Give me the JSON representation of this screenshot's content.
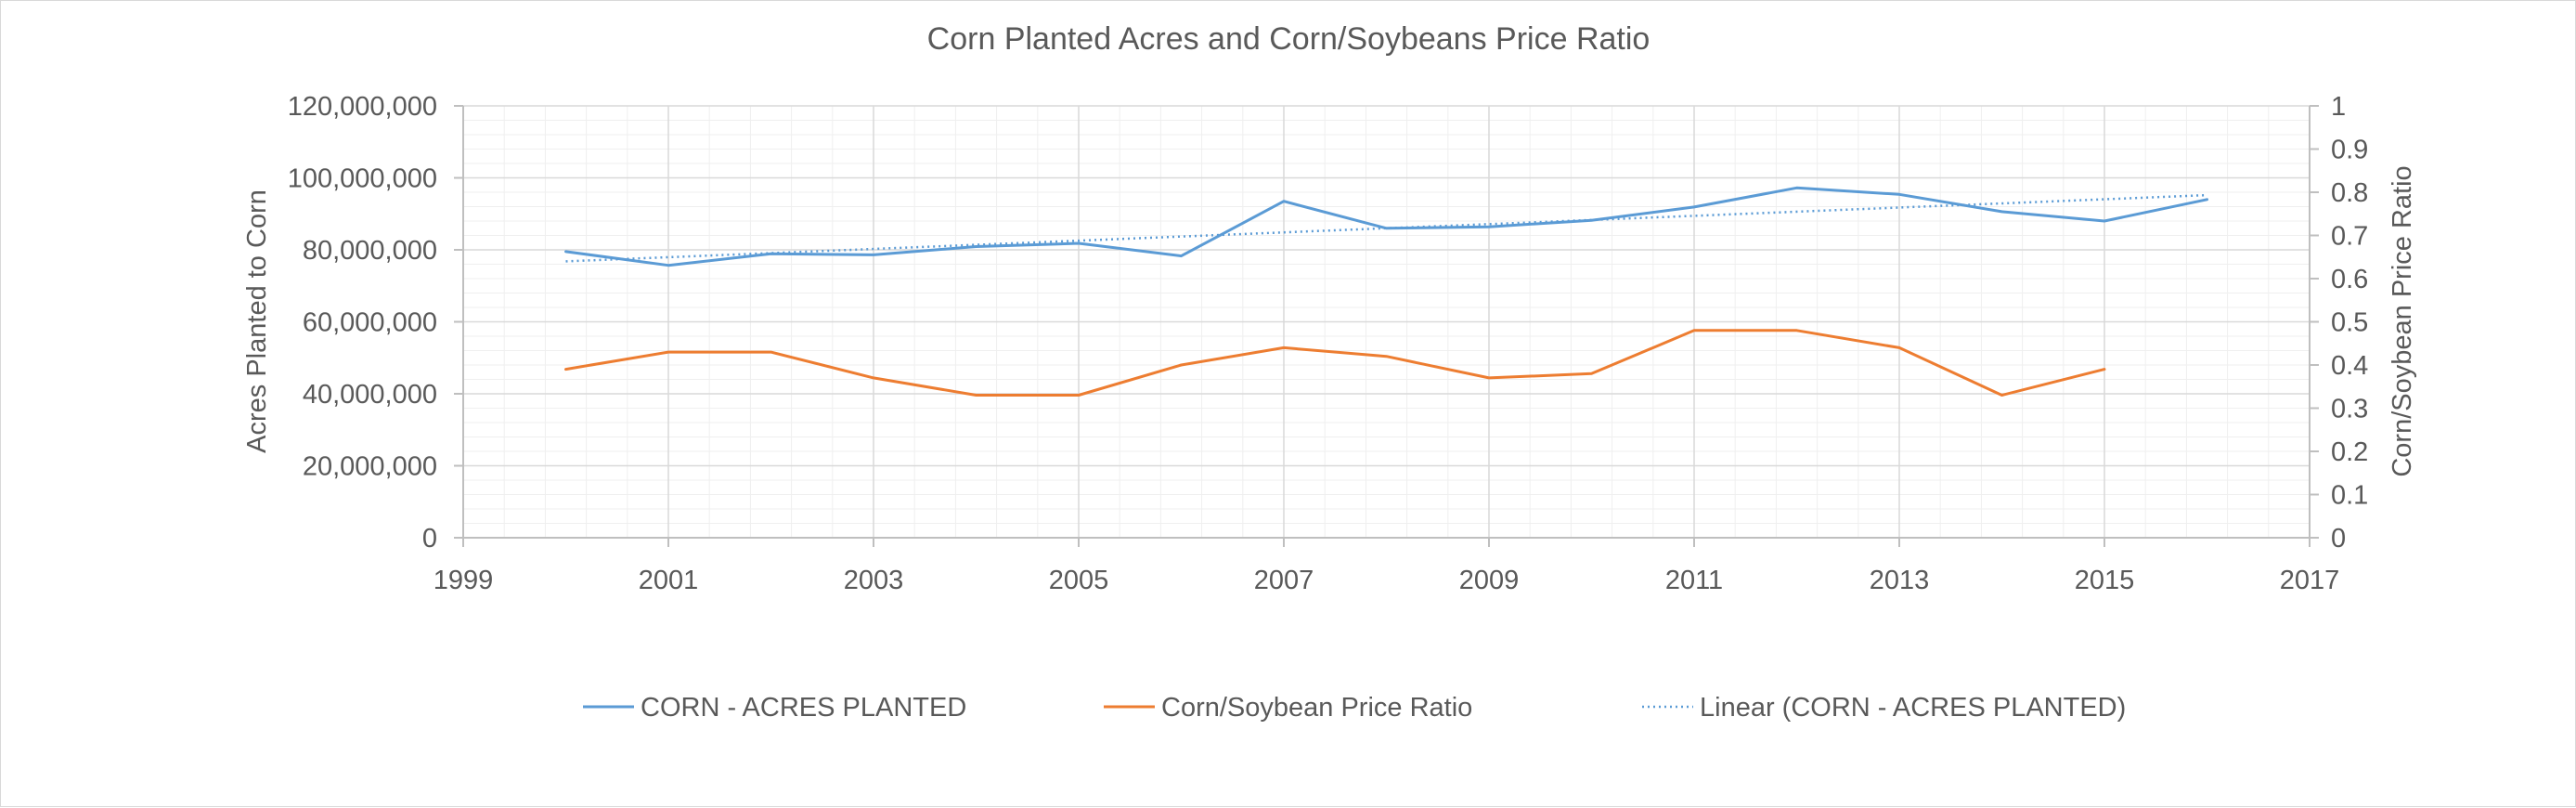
{
  "chart_data": {
    "type": "line",
    "title": "Corn Planted Acres and Corn/Soybeans Price Ratio",
    "xlabel": "",
    "ylabel": "Acres Planted to Corn",
    "y2label": "Corn/Soybean Price Ratio",
    "xlim": [
      1999,
      2017
    ],
    "x_ticks": [
      "1999",
      "2001",
      "2003",
      "2005",
      "2007",
      "2009",
      "2011",
      "2013",
      "2015",
      "2017"
    ],
    "ylim": [
      0,
      120000000
    ],
    "y_ticks": [
      "0",
      "20,000,000",
      "40,000,000",
      "60,000,000",
      "80,000,000",
      "100,000,000",
      "120,000,000"
    ],
    "y2lim": [
      0,
      1
    ],
    "y2_ticks": [
      "0",
      "0.1",
      "0.2",
      "0.3",
      "0.4",
      "0.5",
      "0.6",
      "0.7",
      "0.8",
      "0.9",
      "1"
    ],
    "grid": true,
    "legend_position": "bottom",
    "series": [
      {
        "name": "CORN - ACRES PLANTED",
        "axis": "left",
        "color": "#5b9bd5",
        "style": "solid",
        "x": [
          2000,
          2001,
          2002,
          2003,
          2004,
          2005,
          2006,
          2007,
          2008,
          2009,
          2010,
          2011,
          2012,
          2013,
          2014,
          2015,
          2016
        ],
        "values": [
          79500000,
          75700000,
          78900000,
          78600000,
          80900000,
          81800000,
          78300000,
          93500000,
          86000000,
          86400000,
          88200000,
          91900000,
          97200000,
          95400000,
          90600000,
          88000000,
          94000000
        ]
      },
      {
        "name": "Corn/Soybean Price Ratio",
        "axis": "right",
        "color": "#ed7d31",
        "style": "solid",
        "x": [
          2000,
          2001,
          2002,
          2003,
          2004,
          2005,
          2006,
          2007,
          2008,
          2009,
          2010,
          2011,
          2012,
          2013,
          2014,
          2015
        ],
        "values": [
          0.39,
          0.43,
          0.43,
          0.37,
          0.33,
          0.33,
          0.4,
          0.44,
          0.42,
          0.37,
          0.38,
          0.48,
          0.48,
          0.44,
          0.33,
          0.39
        ]
      },
      {
        "name": "Linear (CORN - ACRES PLANTED)",
        "axis": "left",
        "color": "#5b9bd5",
        "style": "dotted",
        "trendline": true,
        "x": [
          2000,
          2016
        ],
        "values": [
          76800000,
          95200000
        ]
      }
    ]
  }
}
